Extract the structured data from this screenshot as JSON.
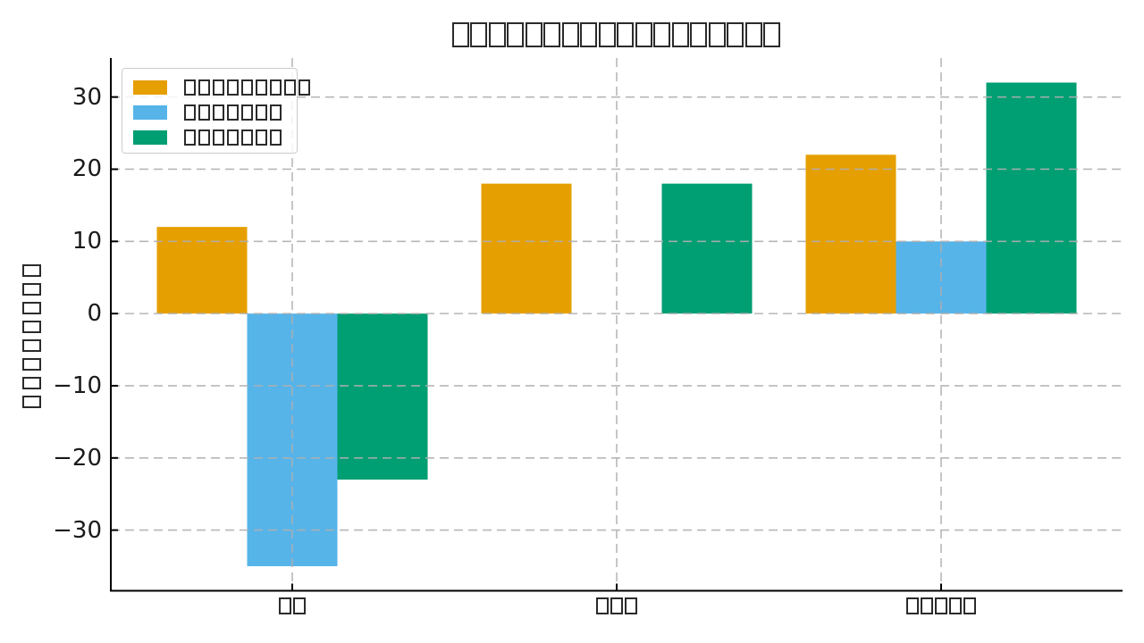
{
  "figure": {
    "background": "#ffffff"
  },
  "chart_data": {
    "type": "bar",
    "title": "□□□□□□□□□□□□□□□□□□",
    "title_glyphs": "18 missing-glyph (tofu) boxes",
    "ylabel": "□□□□□□□□",
    "ylabel_glyphs": "8 missing-glyph boxes, rotated 90°",
    "categories": [
      "□□",
      "□□□",
      "□□□□□"
    ],
    "series": [
      {
        "name": "□□□□□□□□□",
        "color": "#E69F00",
        "values": [
          12,
          18,
          22
        ]
      },
      {
        "name": "□□□□□□□",
        "color": "#56B4E9",
        "values": [
          -35,
          0,
          10
        ]
      },
      {
        "name": "□□□□□□□",
        "color": "#009E73",
        "values": [
          -23,
          18,
          32
        ]
      }
    ],
    "yticks": [
      30,
      20,
      10,
      0,
      -10,
      -20,
      -30
    ],
    "ytick_labels": [
      "30",
      "20",
      "10",
      "0",
      "−10",
      "−20",
      "−30"
    ],
    "ylim": [
      -38.4,
      35.4
    ],
    "grid": {
      "style": "dashed",
      "color": "#b0b0b0",
      "over_bars": true,
      "vertical_at_category_centers": true
    },
    "legend": {
      "position": "upper left",
      "border_color": "#cccccc"
    },
    "axes": {
      "spines": [
        "left",
        "bottom"
      ],
      "spine_color": "#000000",
      "tick_direction": "in"
    }
  }
}
